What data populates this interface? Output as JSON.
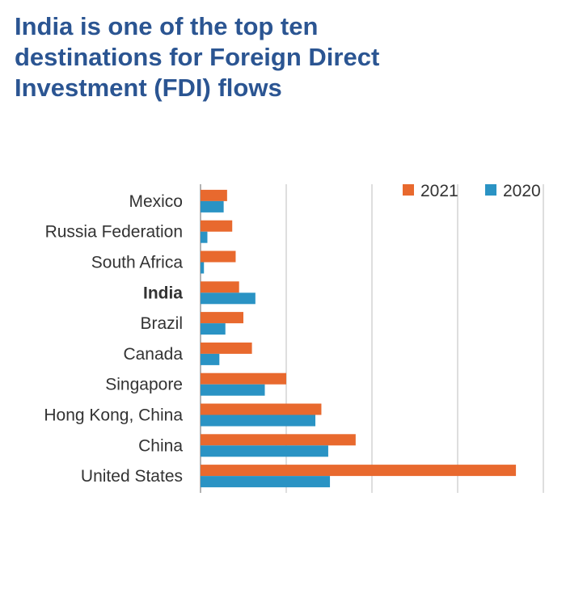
{
  "title": "India is one of the top ten destinations for Foreign Direct Investment (FDI) flows",
  "chart_data": {
    "type": "bar",
    "orientation": "horizontal",
    "title": "India is one of the top ten destinations for Foreign Direct Investment (FDI) flows",
    "categories": [
      "Mexico",
      "Russia Federation",
      "South Africa",
      "India",
      "Brazil",
      "Canada",
      "Singapore",
      "Hong Kong, China",
      "China",
      "United States"
    ],
    "highlighted_category": "India",
    "series": [
      {
        "name": "2021",
        "color": "#e8692e",
        "values": [
          31,
          37,
          41,
          45,
          50,
          60,
          100,
          141,
          181,
          368
        ]
      },
      {
        "name": "2020",
        "color": "#2a93c4",
        "values": [
          27,
          8,
          4,
          64,
          29,
          22,
          75,
          134,
          149,
          151
        ]
      }
    ],
    "xlim": [
      0,
      400
    ],
    "x_ticks_labeled": false,
    "grid": true,
    "legend": "top-right"
  }
}
